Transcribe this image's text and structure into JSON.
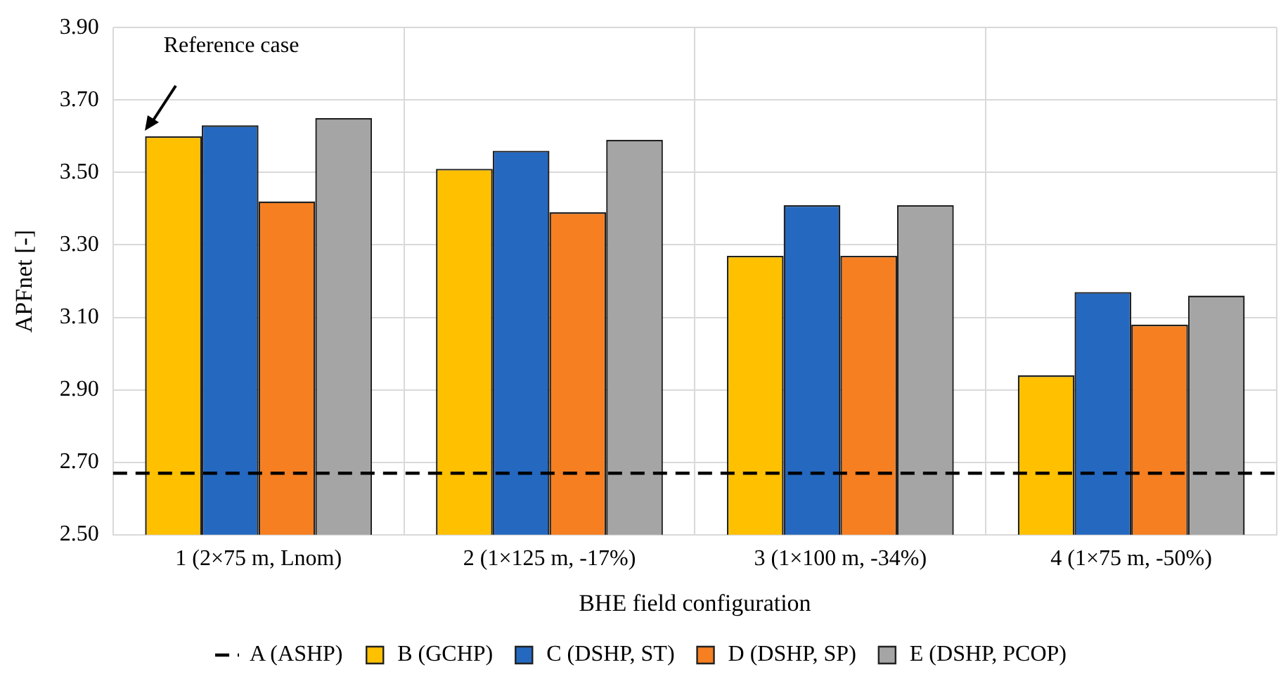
{
  "chart_data": {
    "type": "bar",
    "xlabel": "BHE field configuration",
    "ylabel": "APFnet [-]",
    "categories": [
      "1 (2×75 m, Lnom)",
      "2 (1×125 m, -17%)",
      "3 (1×100 m, -34%)",
      "4 (1×75 m, -50%)"
    ],
    "series": [
      {
        "name": "B (GCHP)",
        "color": "#ffc000",
        "values": [
          3.6,
          3.51,
          3.27,
          2.94
        ]
      },
      {
        "name": "C (DSHP, ST)",
        "color": "#2468c0",
        "values": [
          3.63,
          3.56,
          3.41,
          3.17
        ]
      },
      {
        "name": "D (DSHP, SP)",
        "color": "#f57f21",
        "values": [
          3.42,
          3.39,
          3.27,
          3.08
        ]
      },
      {
        "name": "E (DSHP, PCOP)",
        "color": "#a5a5a5",
        "values": [
          3.65,
          3.59,
          3.41,
          3.16
        ]
      }
    ],
    "ylim": [
      2.5,
      3.9
    ],
    "yticks": [
      {
        "value": 2.5,
        "label": "2.50"
      },
      {
        "value": 2.7,
        "label": "2.70"
      },
      {
        "value": 2.9,
        "label": "2.90"
      },
      {
        "value": 3.1,
        "label": "3.10"
      },
      {
        "value": 3.3,
        "label": "3.30"
      },
      {
        "value": 3.5,
        "label": "3.50"
      },
      {
        "value": 3.7,
        "label": "3.70"
      },
      {
        "value": 3.9,
        "label": "3.90"
      }
    ],
    "ref_lines": [
      {
        "axis": "y",
        "value": 2.67,
        "label": "A (ASHP)",
        "color": "#000000",
        "line_style": "dashed"
      }
    ],
    "annotations": [
      "Reference case"
    ],
    "grid": true,
    "legend": "bottom"
  }
}
